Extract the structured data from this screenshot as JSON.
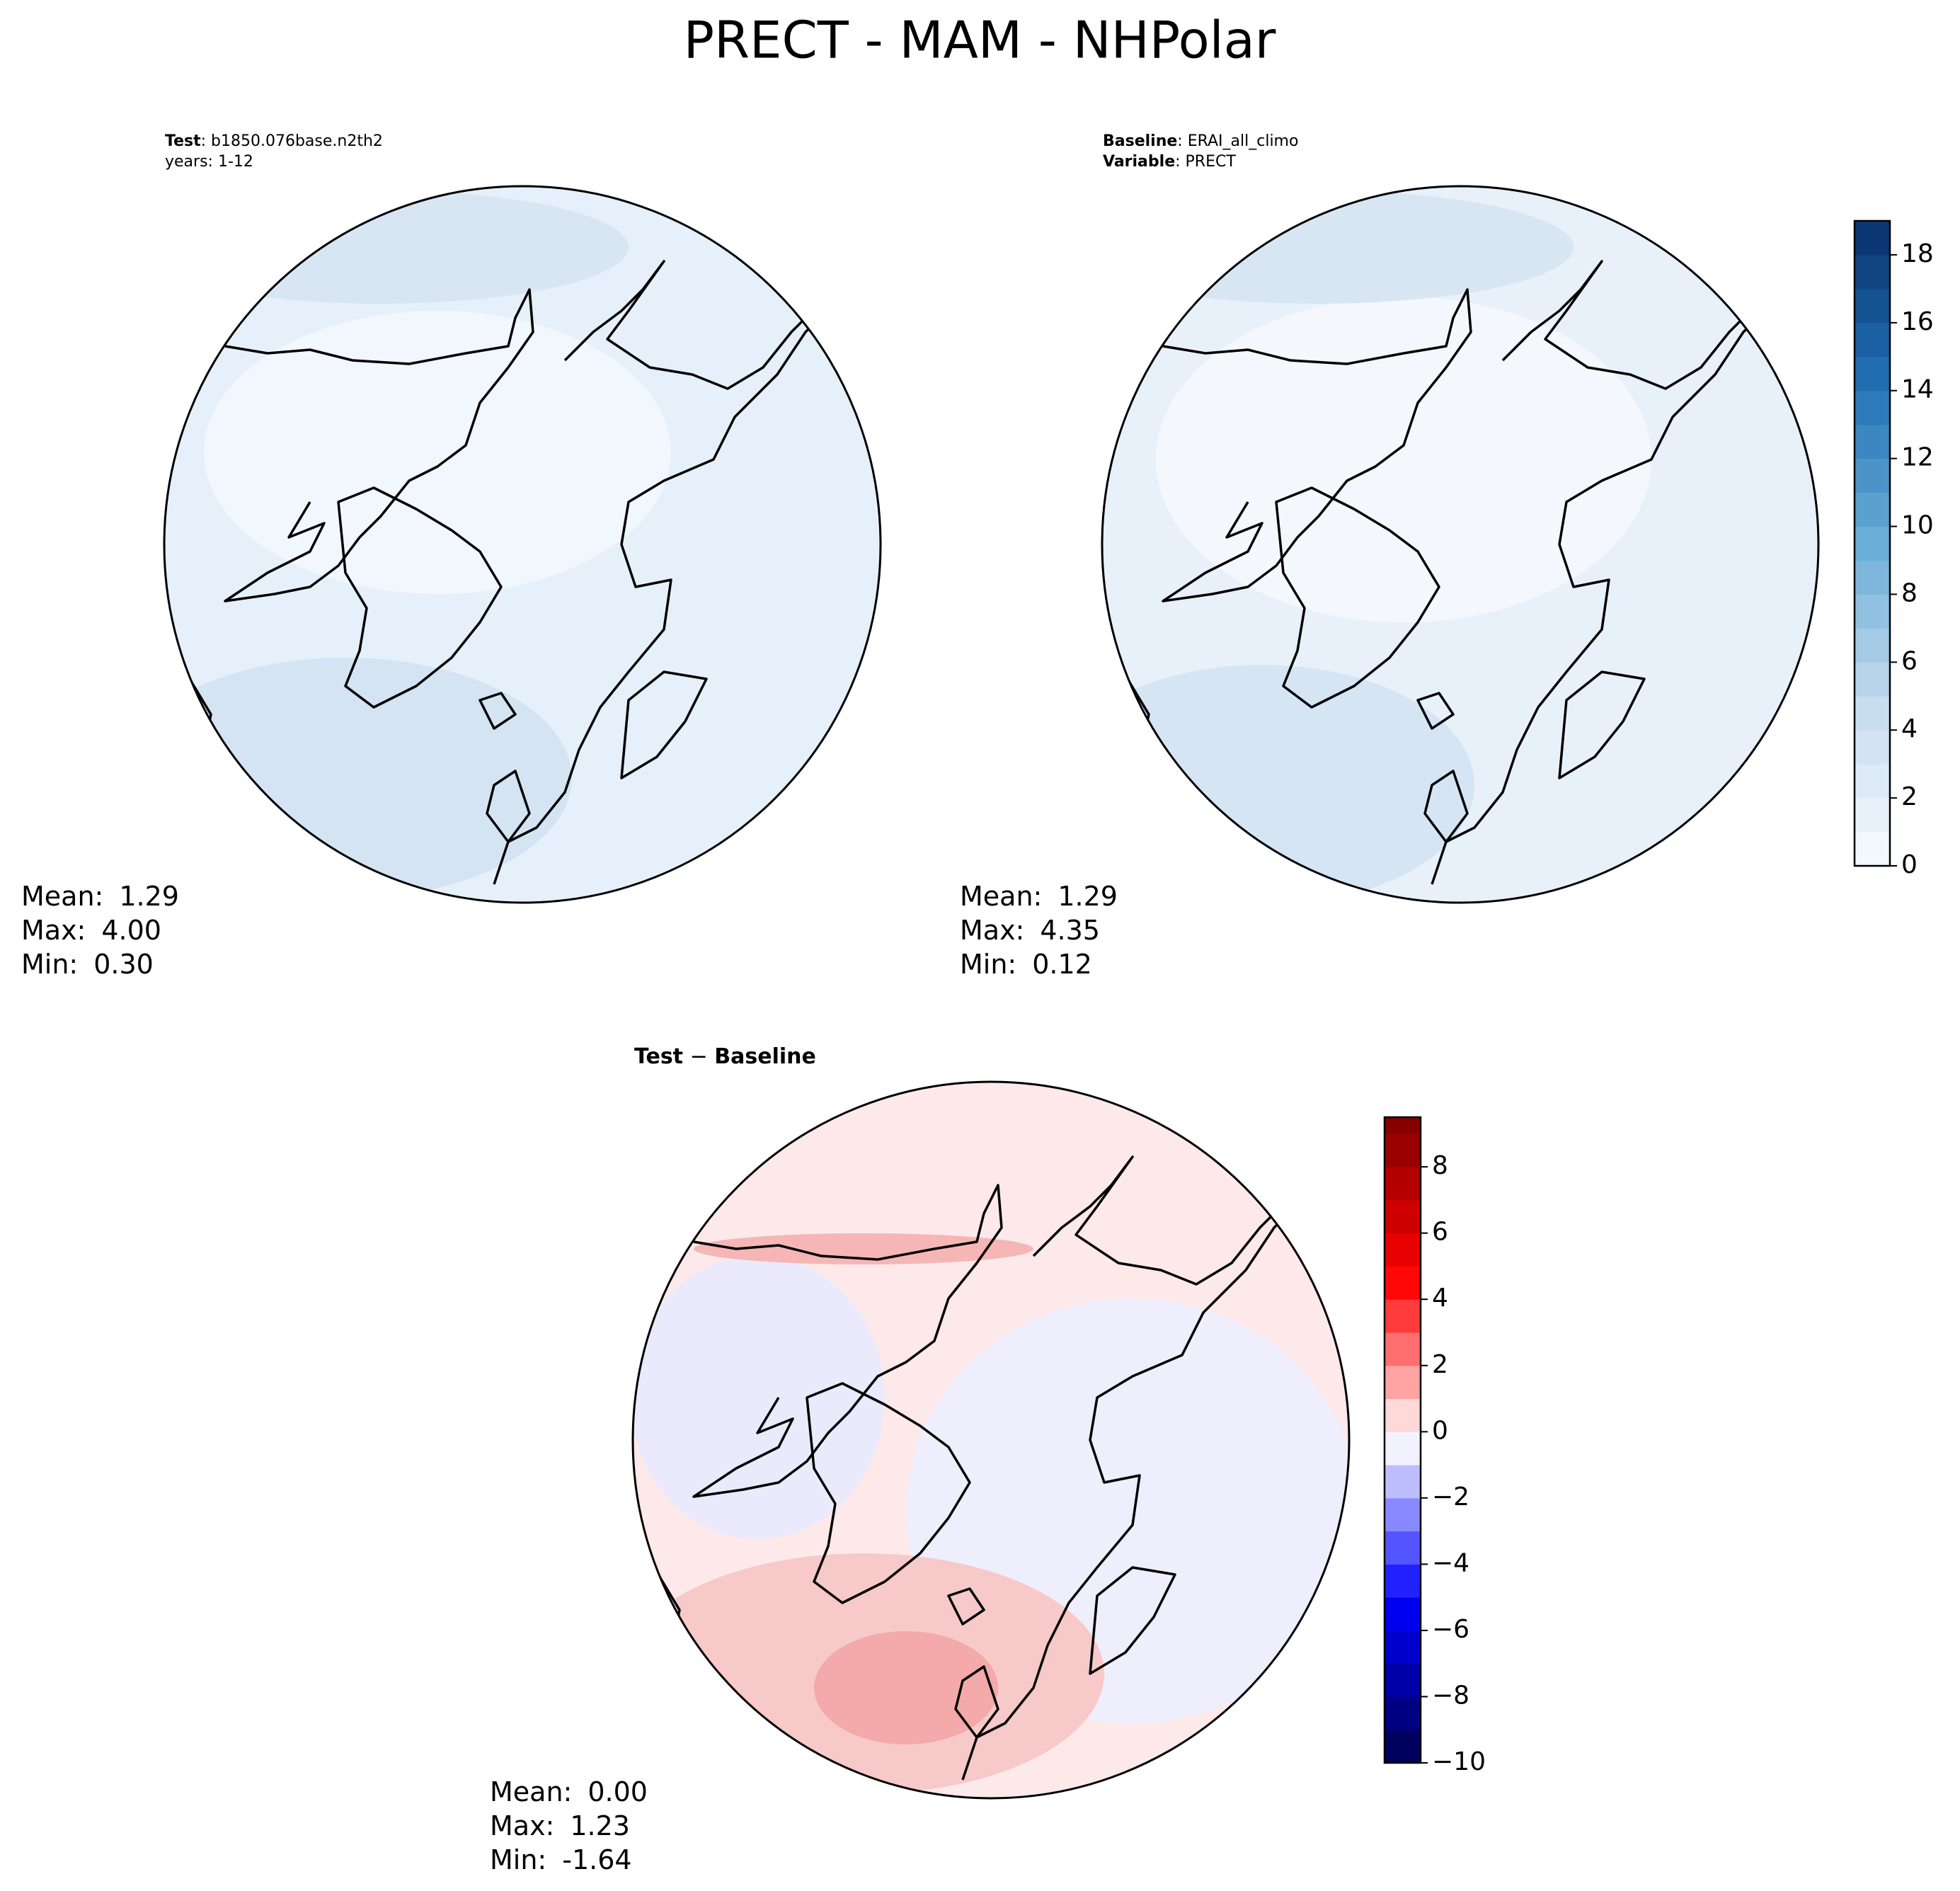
{
  "title": "PRECT - MAM - NHPolar",
  "panels": [
    {
      "labels": [
        {
          "key": "Test",
          "text": ": b1850.076base.n2th2"
        },
        {
          "text": "years: 1-12"
        }
      ],
      "stats": [
        {
          "label": "Mean:",
          "value": "1.29"
        },
        {
          "label": "Max:",
          "value": "4.00"
        },
        {
          "label": "Min:",
          "value": "0.30"
        }
      ]
    },
    {
      "labels": [
        {
          "key": "Baseline",
          "text": ": ERAI_all_climo"
        },
        {
          "key": "Variable",
          "text": ": PRECT"
        }
      ],
      "stats": [
        {
          "label": "Mean:",
          "value": "1.29"
        },
        {
          "label": "Max:",
          "value": "4.35"
        },
        {
          "label": "Min:",
          "value": "0.12"
        }
      ]
    },
    {
      "labels": [
        {
          "key": "Test",
          "text": " − "
        },
        {
          "key": "Baseline"
        }
      ],
      "stats": [
        {
          "label": "Mean:",
          "value": "0.00"
        },
        {
          "label": "Max:",
          "value": "1.23"
        },
        {
          "label": "Min:",
          "value": "-1.64"
        }
      ]
    }
  ],
  "colorbars": [
    {
      "lim": [
        0,
        19
      ],
      "step": 1,
      "ticks": [
        0,
        2,
        4,
        6,
        8,
        10,
        12,
        14,
        16,
        18
      ],
      "colors": [
        "#f7fbff",
        "#c6dbef",
        "#6baed6",
        "#2171b5",
        "#08306b"
      ]
    },
    {
      "lim": [
        -10,
        9.5
      ],
      "step": 1,
      "ticks": [
        {
          "value": -10,
          "label": "−10"
        },
        {
          "value": -8,
          "label": "−8"
        },
        {
          "value": -6,
          "label": "−6"
        },
        {
          "value": -4,
          "label": "−4"
        },
        {
          "value": -2,
          "label": "−2"
        },
        0,
        2,
        4,
        6,
        8
      ],
      "colors": [
        "#00004c",
        "#0000ff",
        "#ffffff",
        "#ff0000",
        "#800000"
      ]
    }
  ]
}
